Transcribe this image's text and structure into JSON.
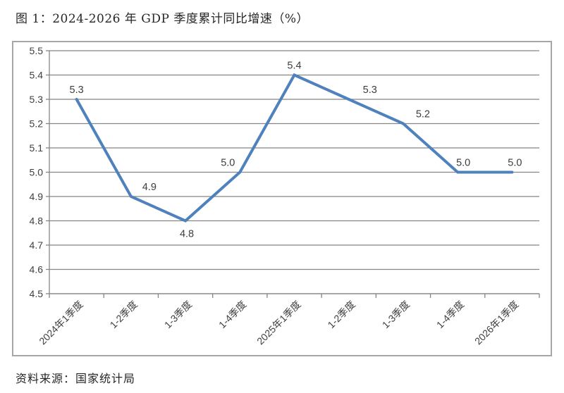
{
  "page": {
    "figure_title": "图 1：2024-2026 年 GDP 季度累计同比增速（%）",
    "source_note": "资料来源：国家统计局"
  },
  "chart_data": {
    "type": "line",
    "title": "图 1：2024-2026 年 GDP 季度累计同比增速（%）",
    "categories": [
      "2024年1季度",
      "1-2季度",
      "1-3季度",
      "1-4季度",
      "2025年1季度",
      "1-2季度",
      "1-3季度",
      "1-4季度",
      "2026年1季度"
    ],
    "values": [
      5.3,
      4.9,
      4.8,
      5.0,
      5.4,
      5.3,
      5.2,
      5.0,
      5.0
    ],
    "data_labels": [
      "5.3",
      "4.9",
      "4.8",
      "5.0",
      "5.4",
      "5.3",
      "5.2",
      "5.0",
      "5.0"
    ],
    "data_label_positions": [
      "above",
      "above",
      "below",
      "above",
      "above",
      "above",
      "above",
      "above",
      "above"
    ],
    "ylabel": "",
    "xlabel": "",
    "ylim": [
      4.5,
      5.5
    ],
    "ytick_step": 0.1,
    "ytick_labels": [
      "4.5",
      "4.6",
      "4.7",
      "4.8",
      "4.9",
      "5.0",
      "5.1",
      "5.2",
      "5.3",
      "5.4",
      "5.5"
    ],
    "grid": "on",
    "legend": "none",
    "colors": {
      "line": "#4F81BD",
      "grid": "#858585",
      "axis": "#858585",
      "tick_text": "#404040",
      "data_label_text": "#3d3d3d",
      "frame_border": "#a6a6a6"
    }
  }
}
